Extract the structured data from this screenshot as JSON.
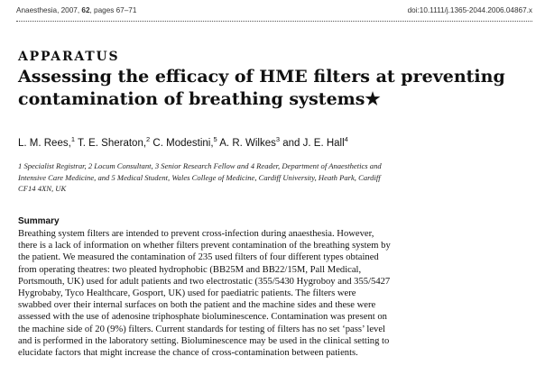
{
  "running_head": {
    "journal_prefix": "Anaesthesia, 2007, ",
    "volume": "62",
    "pages": ", pages 67–71",
    "doi": "doi:10.1111/j.1365-2044.2006.04867.x"
  },
  "section_label": "APPARATUS",
  "title": {
    "line1": "Assessing the efficacy of HME filters at preventing",
    "line2": "contamination of breathing systems★"
  },
  "authors": [
    {
      "name": "L. M. Rees,",
      "sup": "1"
    },
    {
      "name": " T. E. Sheraton,",
      "sup": "2"
    },
    {
      "name": " C. Modestini,",
      "sup": "5"
    },
    {
      "name": " A. R. Wilkes",
      "sup": "3"
    },
    {
      "name": " and J. E. Hall",
      "sup": "4"
    }
  ],
  "affiliation": {
    "line1": "1 Specialist Registrar, 2 Locum Consultant, 3 Senior Research Fellow and 4 Reader, Department of Anaesthetics and",
    "line2": "Intensive Care Medicine, and 5 Medical Student, Wales College of Medicine, Cardiff University, Heath Park, Cardiff",
    "line3": "CF14 4XN, UK"
  },
  "summary": {
    "heading": "Summary",
    "lines": [
      "Breathing system filters are intended to prevent cross-infection during anaesthesia. However,",
      "there is a lack of information on whether filters prevent contamination of the breathing system by",
      "the patient. We measured the contamination of 235 used filters of four different types obtained",
      "from operating theatres: two pleated hydrophobic (BB25M and BB22/15M, Pall Medical,",
      "Portsmouth, UK) used for adult patients and two electrostatic (355/5430 Hygroboy and 355/5427",
      "Hygrobaby, Tyco Healthcare, Gosport, UK) used for paediatric patients. The filters were",
      "swabbed over their internal surfaces on both the patient and the machine sides and these were",
      "assessed with the use of adenosine triphosphate bioluminescence. Contamination was present on",
      "the machine side of 20 (9%) filters. Current standards for testing of filters has no set ‘pass’ level",
      "and is performed in the laboratory setting. Bioluminescence may be used in the clinical setting to",
      "elucidate factors that might increase the chance of cross-contamination between patients."
    ]
  }
}
